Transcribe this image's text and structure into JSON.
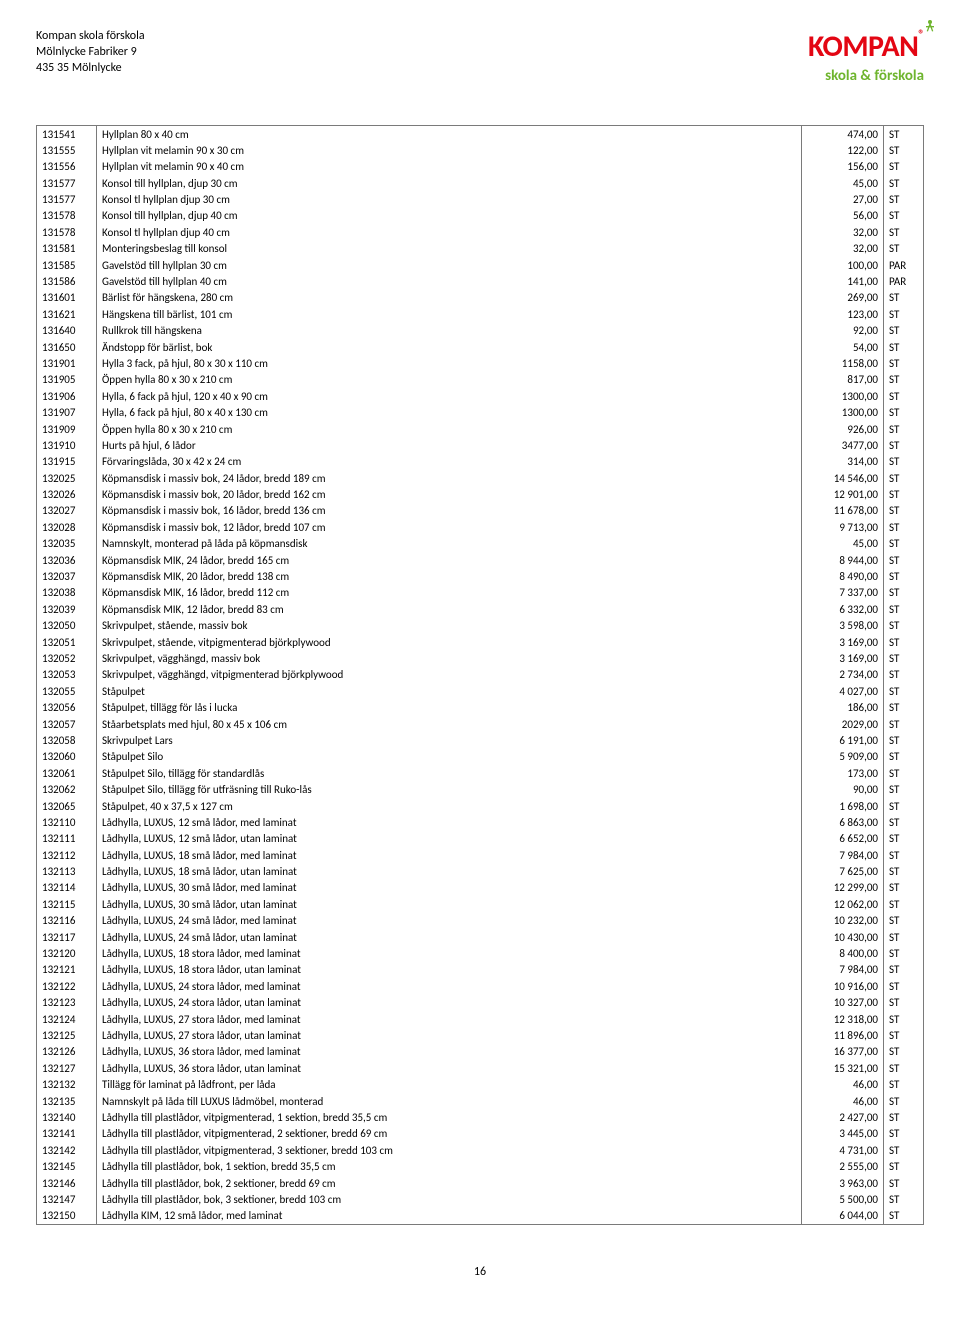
{
  "header": {
    "company": "Kompan skola förskola",
    "street": "Mölnlycke Fabriker 9",
    "postal": "435 35 Mölnlycke",
    "logo_main": "KOMPAN",
    "logo_reg": "®",
    "logo_sub": "skola & förskola"
  },
  "page_number": "16",
  "table": {
    "columns": [
      "id",
      "description",
      "price",
      "unit"
    ],
    "col_align": [
      "left",
      "left",
      "right",
      "left"
    ],
    "rows": [
      [
        "131541",
        "Hyllplan 80 x 40 cm",
        "474,00",
        "ST"
      ],
      [
        "131555",
        "Hyllplan vit melamin 90 x 30 cm",
        "122,00",
        "ST"
      ],
      [
        "131556",
        "Hyllplan vit melamin 90 x 40 cm",
        "156,00",
        "ST"
      ],
      [
        "131577",
        "Konsol till hyllplan, djup 30 cm",
        "45,00",
        "ST"
      ],
      [
        "131577",
        "Konsol tl hyllplan djup 30 cm",
        "27,00",
        "ST"
      ],
      [
        "131578",
        "Konsol till hyllplan, djup 40 cm",
        "56,00",
        "ST"
      ],
      [
        "131578",
        "Konsol tl hyllplan djup 40 cm",
        "32,00",
        "ST"
      ],
      [
        "131581",
        "Monteringsbeslag till konsol",
        "32,00",
        "ST"
      ],
      [
        "131585",
        "Gavelstöd till hyllplan 30 cm",
        "100,00",
        "PAR"
      ],
      [
        "131586",
        "Gavelstöd till hyllplan 40 cm",
        "141,00",
        "PAR"
      ],
      [
        "131601",
        "Bärlist för hängskena, 280 cm",
        "269,00",
        "ST"
      ],
      [
        "131621",
        "Hängskena till bärlist, 101 cm",
        "123,00",
        "ST"
      ],
      [
        "131640",
        "Rullkrok till hängskena",
        "92,00",
        "ST"
      ],
      [
        "131650",
        "Ändstopp för bärlist, bok",
        "54,00",
        "ST"
      ],
      [
        "131901",
        "Hylla 3 fack, på hjul, 80 x 30 x 110 cm",
        "1158,00",
        "ST"
      ],
      [
        "131905",
        "Öppen hylla 80 x 30 x 210 cm",
        "817,00",
        "ST"
      ],
      [
        "131906",
        "Hylla, 6 fack på hjul, 120 x 40 x 90 cm",
        "1300,00",
        "ST"
      ],
      [
        "131907",
        "Hylla, 6 fack på hjul, 80 x 40 x 130 cm",
        "1300,00",
        "ST"
      ],
      [
        "131909",
        "Öppen hylla 80 x 30 x 210 cm",
        "926,00",
        "ST"
      ],
      [
        "131910",
        "Hurts på hjul, 6 lådor",
        "3477,00",
        "ST"
      ],
      [
        "131915",
        "Förvaringslåda, 30 x 42 x 24 cm",
        "314,00",
        "ST"
      ],
      [
        "132025",
        "Köpmansdisk i massiv bok, 24 lådor, bredd 189 cm",
        "14 546,00",
        "ST"
      ],
      [
        "132026",
        "Köpmansdisk i massiv bok, 20 lådor, bredd 162 cm",
        "12 901,00",
        "ST"
      ],
      [
        "132027",
        "Köpmansdisk i massiv bok, 16 lådor, bredd 136 cm",
        "11 678,00",
        "ST"
      ],
      [
        "132028",
        "Köpmansdisk i massiv bok, 12 lådor, bredd 107 cm",
        "9 713,00",
        "ST"
      ],
      [
        "132035",
        "Namnskylt, monterad på låda på köpmansdisk",
        "45,00",
        "ST"
      ],
      [
        "132036",
        "Köpmansdisk MIK, 24 lådor, bredd 165 cm",
        "8 944,00",
        "ST"
      ],
      [
        "132037",
        "Köpmansdisk MIK, 20 lådor, bredd 138 cm",
        "8 490,00",
        "ST"
      ],
      [
        "132038",
        "Köpmansdisk MIK, 16 lådor, bredd 112 cm",
        "7 337,00",
        "ST"
      ],
      [
        "132039",
        "Köpmansdisk MIK, 12 lådor, bredd 83 cm",
        "6 332,00",
        "ST"
      ],
      [
        "132050",
        "Skrivpulpet, stående, massiv bok",
        "3 598,00",
        "ST"
      ],
      [
        "132051",
        "Skrivpulpet, stående, vitpigmenterad björkplywood",
        "3 169,00",
        "ST"
      ],
      [
        "132052",
        "Skrivpulpet, vägghängd, massiv bok",
        "3 169,00",
        "ST"
      ],
      [
        "132053",
        "Skrivpulpet, vägghängd, vitpigmenterad björkplywood",
        "2 734,00",
        "ST"
      ],
      [
        "132055",
        "Ståpulpet",
        "4 027,00",
        "ST"
      ],
      [
        "132056",
        "Ståpulpet, tillägg för lås i lucka",
        "186,00",
        "ST"
      ],
      [
        "132057",
        "Ståarbetsplats med hjul, 80 x 45 x 106 cm",
        "2029,00",
        "ST"
      ],
      [
        "132058",
        "Skrivpulpet Lars",
        "6 191,00",
        "ST"
      ],
      [
        "132060",
        "Ståpulpet Silo",
        "5 909,00",
        "ST"
      ],
      [
        "132061",
        "Ståpulpet Silo, tillägg för standardlås",
        "173,00",
        "ST"
      ],
      [
        "132062",
        "Ståpulpet Silo, tillägg för utfräsning till Ruko-lås",
        "90,00",
        "ST"
      ],
      [
        "132065",
        "Ståpulpet, 40 x 37,5 x 127 cm",
        "1 698,00",
        "ST"
      ],
      [
        "132110",
        "Lådhylla, LUXUS, 12 små lådor, med laminat",
        "6 863,00",
        "ST"
      ],
      [
        "132111",
        "Lådhylla, LUXUS, 12 små lådor, utan laminat",
        "6 652,00",
        "ST"
      ],
      [
        "132112",
        "Lådhylla, LUXUS, 18 små lådor, med laminat",
        "7 984,00",
        "ST"
      ],
      [
        "132113",
        "Lådhylla, LUXUS, 18 små lådor, utan laminat",
        "7 625,00",
        "ST"
      ],
      [
        "132114",
        "Lådhylla, LUXUS, 30 små lådor, med laminat",
        "12 299,00",
        "ST"
      ],
      [
        "132115",
        "Lådhylla, LUXUS, 30 små lådor, utan laminat",
        "12 062,00",
        "ST"
      ],
      [
        "132116",
        "Lådhylla, LUXUS, 24 små lådor, med laminat",
        "10 232,00",
        "ST"
      ],
      [
        "132117",
        "Lådhylla, LUXUS, 24 små lådor, utan laminat",
        "10 430,00",
        "ST"
      ],
      [
        "132120",
        "Lådhylla, LUXUS, 18 stora lådor, med laminat",
        "8 400,00",
        "ST"
      ],
      [
        "132121",
        "Lådhylla, LUXUS, 18 stora lådor, utan laminat",
        "7 984,00",
        "ST"
      ],
      [
        "132122",
        "Lådhylla, LUXUS, 24 stora lådor, med laminat",
        "10 916,00",
        "ST"
      ],
      [
        "132123",
        "Lådhylla, LUXUS, 24 stora lådor, utan laminat",
        "10 327,00",
        "ST"
      ],
      [
        "132124",
        "Lådhylla, LUXUS, 27 stora lådor, med laminat",
        "12 318,00",
        "ST"
      ],
      [
        "132125",
        "Lådhylla, LUXUS, 27 stora lådor, utan laminat",
        "11 896,00",
        "ST"
      ],
      [
        "132126",
        "Lådhylla, LUXUS, 36 stora lådor, med laminat",
        "16 377,00",
        "ST"
      ],
      [
        "132127",
        "Lådhylla, LUXUS, 36 stora lådor, utan laminat",
        "15 321,00",
        "ST"
      ],
      [
        "132132",
        "Tillägg för laminat på lådfront, per låda",
        "46,00",
        "ST"
      ],
      [
        "132135",
        "Namnskylt på låda till LUXUS lådmöbel, monterad",
        "46,00",
        "ST"
      ],
      [
        "132140",
        "Lådhylla till plastlådor, vitpigmenterad, 1 sektion, bredd 35,5 cm",
        "2 427,00",
        "ST"
      ],
      [
        "132141",
        "Lådhylla till plastlådor, vitpigmenterad, 2 sektioner, bredd 69 cm",
        "3 445,00",
        "ST"
      ],
      [
        "132142",
        "Lådhylla till plastlådor, vitpigmenterad, 3 sektioner, bredd 103 cm",
        "4 731,00",
        "ST"
      ],
      [
        "132145",
        "Lådhylla till plastlådor, bok, 1 sektion, bredd 35,5 cm",
        "2 555,00",
        "ST"
      ],
      [
        "132146",
        "Lådhylla till plastlådor, bok, 2 sektioner, bredd 69 cm",
        "3 963,00",
        "ST"
      ],
      [
        "132147",
        "Lådhylla till plastlådor, bok, 3 sektioner, bredd 103 cm",
        "5 500,00",
        "ST"
      ],
      [
        "132150",
        "Lådhylla KIM, 12 små lådor, med laminat",
        "6 044,00",
        "ST"
      ]
    ]
  }
}
